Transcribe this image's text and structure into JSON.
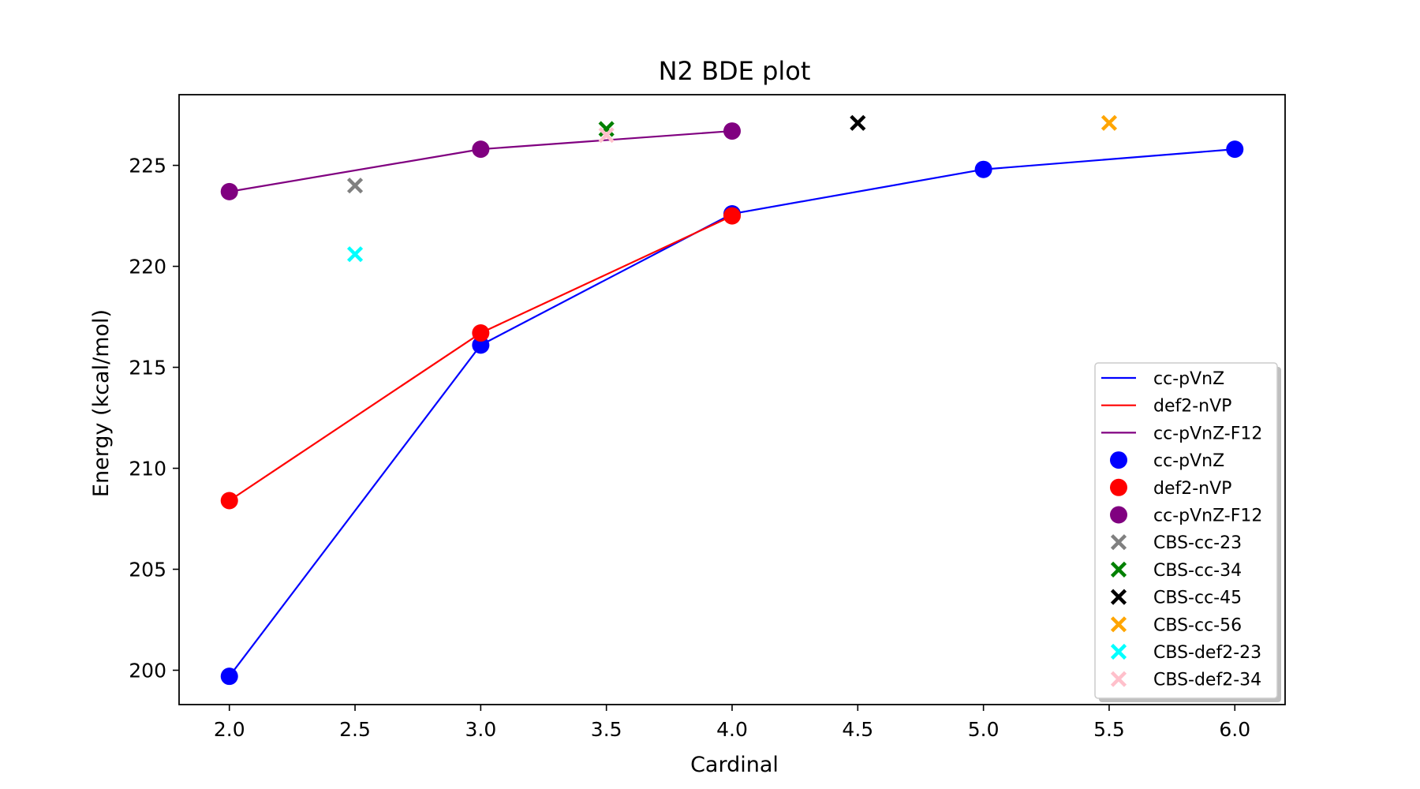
{
  "chart_data": {
    "type": "line",
    "title": "N2 BDE plot",
    "xlabel": "Cardinal",
    "ylabel": "Energy (kcal/mol)",
    "xlim": [
      1.8,
      6.2
    ],
    "ylim": [
      198.3,
      228.5
    ],
    "xticks": [
      2.0,
      2.5,
      3.0,
      3.5,
      4.0,
      4.5,
      5.0,
      5.5,
      6.0
    ],
    "xtick_labels": [
      "2.0",
      "2.5",
      "3.0",
      "3.5",
      "4.0",
      "4.5",
      "5.0",
      "5.5",
      "6.0"
    ],
    "yticks": [
      200,
      205,
      210,
      215,
      220,
      225
    ],
    "ytick_labels": [
      "200",
      "205",
      "210",
      "215",
      "220",
      "225"
    ],
    "grid": false,
    "legend_position": "lower-right",
    "series": [
      {
        "name": "cc-pVnZ",
        "color": "#0000ff",
        "x": [
          2,
          3,
          4,
          5,
          6
        ],
        "y": [
          199.7,
          216.1,
          222.6,
          224.8,
          225.8
        ]
      },
      {
        "name": "def2-nVP",
        "color": "#ff0000",
        "x": [
          2,
          3,
          4
        ],
        "y": [
          208.4,
          216.7,
          222.5
        ]
      },
      {
        "name": "cc-pVnZ-F12",
        "color": "#800080",
        "x": [
          2,
          3,
          4
        ],
        "y": [
          223.7,
          225.8,
          226.7
        ]
      }
    ],
    "points": [
      {
        "name": "CBS-cc-23",
        "color": "#808080",
        "x": 2.5,
        "y": 224.0
      },
      {
        "name": "CBS-cc-34",
        "color": "#008000",
        "x": 3.5,
        "y": 226.8
      },
      {
        "name": "CBS-cc-45",
        "color": "#000000",
        "x": 4.5,
        "y": 227.1
      },
      {
        "name": "CBS-cc-56",
        "color": "#ffa500",
        "x": 5.5,
        "y": 227.1
      },
      {
        "name": "CBS-def2-23",
        "color": "#00ffff",
        "x": 2.5,
        "y": 220.6
      },
      {
        "name": "CBS-def2-34",
        "color": "#ffc0cb",
        "x": 3.5,
        "y": 226.5
      }
    ],
    "legend": [
      {
        "label": "cc-pVnZ",
        "kind": "line",
        "color": "#0000ff"
      },
      {
        "label": "def2-nVP",
        "kind": "line",
        "color": "#ff0000"
      },
      {
        "label": "cc-pVnZ-F12",
        "kind": "line",
        "color": "#800080"
      },
      {
        "label": "cc-pVnZ",
        "kind": "dot",
        "color": "#0000ff"
      },
      {
        "label": "def2-nVP",
        "kind": "dot",
        "color": "#ff0000"
      },
      {
        "label": "cc-pVnZ-F12",
        "kind": "dot",
        "color": "#800080"
      },
      {
        "label": "CBS-cc-23",
        "kind": "x",
        "color": "#808080"
      },
      {
        "label": "CBS-cc-34",
        "kind": "x",
        "color": "#008000"
      },
      {
        "label": "CBS-cc-45",
        "kind": "x",
        "color": "#000000"
      },
      {
        "label": "CBS-cc-56",
        "kind": "x",
        "color": "#ffa500"
      },
      {
        "label": "CBS-def2-23",
        "kind": "x",
        "color": "#00ffff"
      },
      {
        "label": "CBS-def2-34",
        "kind": "x",
        "color": "#ffc0cb"
      }
    ]
  }
}
